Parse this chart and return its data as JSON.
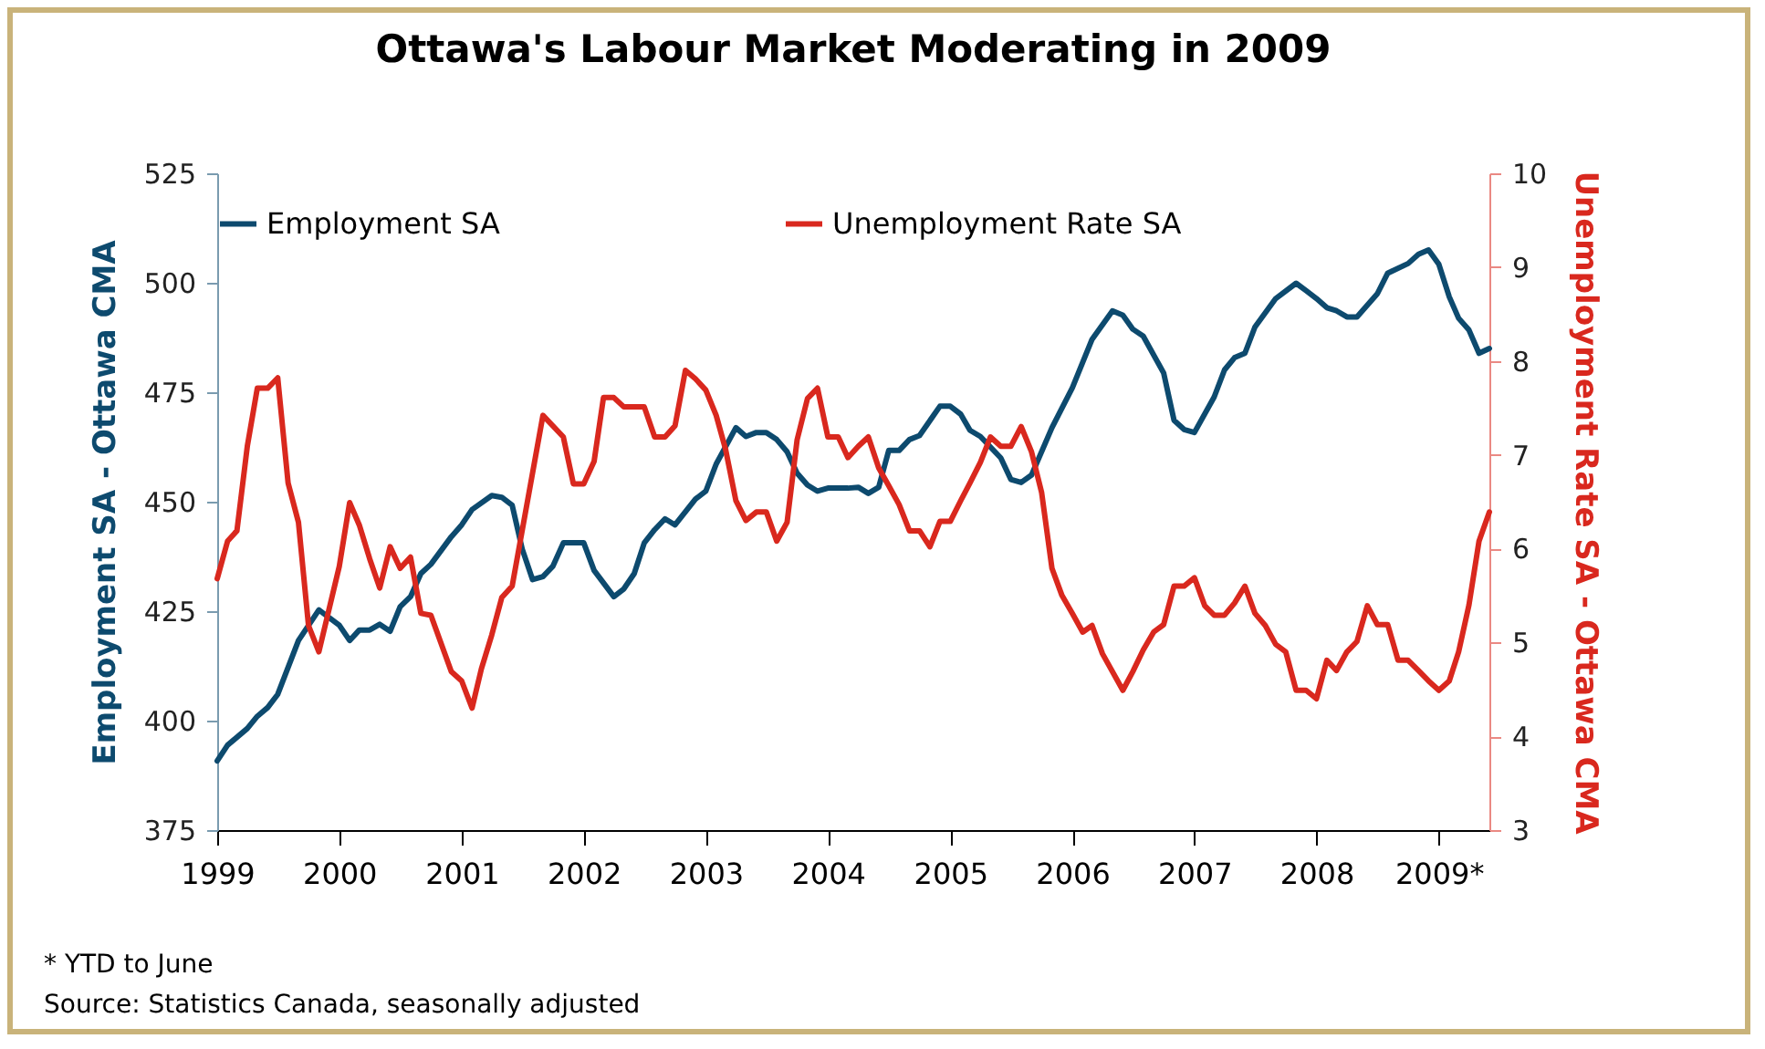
{
  "chart_data": {
    "type": "line",
    "title": "Ottawa's Labour Market Moderating in 2009",
    "ylabel": "Employment SA - Ottawa CMA",
    "y2label": "Unemployment Rate SA - Ottawa CMA",
    "xlim": [
      "1999-01",
      "2009-06"
    ],
    "xticks": [
      "1999",
      "2000",
      "2001",
      "2002",
      "2003",
      "2004",
      "2005",
      "2006",
      "2007",
      "2008",
      {
        "value": "2009",
        "label": "2009*"
      }
    ],
    "ylim": [
      375,
      525
    ],
    "yticks": [
      375,
      400,
      425,
      450,
      475,
      500,
      525
    ],
    "y2lim": [
      3,
      10
    ],
    "y2ticks": [
      3,
      4,
      5,
      6,
      7,
      8,
      9,
      10
    ],
    "legend": "top",
    "grid": false,
    "marker": "none",
    "line_style": "solid",
    "annotations": [
      "* YTD to June",
      "Source: Statistics Canada, seasonally adjusted"
    ],
    "series": [
      {
        "name": "Employment SA",
        "color": "#0d4a6e",
        "x": [
          "1999-01",
          "1999-02",
          "1999-04",
          "1999-05",
          "1999-06",
          "1999-07",
          "1999-09",
          "1999-11",
          "2000-01",
          "2000-02",
          "2000-03",
          "2000-04",
          "2000-05",
          "2000-06",
          "2000-07",
          "2000-08",
          "2000-09",
          "2000-10",
          "2000-12",
          "2001-01",
          "2001-02",
          "2001-04",
          "2001-05",
          "2001-06",
          "2001-07",
          "2001-08",
          "2001-09",
          "2001-10",
          "2001-11",
          "2002-01",
          "2002-02",
          "2002-04",
          "2002-05",
          "2002-06",
          "2002-07",
          "2002-08",
          "2002-09",
          "2002-10",
          "2002-12",
          "2003-01",
          "2003-02",
          "2003-04",
          "2003-05",
          "2003-06",
          "2003-07",
          "2003-08",
          "2003-09",
          "2003-10",
          "2003-11",
          "2003-12",
          "2004-01",
          "2004-03",
          "2004-04",
          "2004-05",
          "2004-06",
          "2004-07",
          "2004-08",
          "2004-09",
          "2004-10",
          "2004-12",
          "2005-01",
          "2005-02",
          "2005-03",
          "2005-04",
          "2005-06",
          "2005-07",
          "2005-08",
          "2005-09",
          "2005-11",
          "2006-01",
          "2006-03",
          "2006-05",
          "2006-06",
          "2006-07",
          "2006-08",
          "2006-10",
          "2006-11",
          "2006-12",
          "2007-01",
          "2007-03",
          "2007-04",
          "2007-05",
          "2007-06",
          "2007-07",
          "2007-09",
          "2007-11",
          "2007-12",
          "2008-01",
          "2008-02",
          "2008-03",
          "2008-04",
          "2008-05",
          "2008-07",
          "2008-08",
          "2008-10",
          "2008-11",
          "2008-12",
          "2009-01",
          "2009-02",
          "2009-03",
          "2009-04",
          "2009-05",
          "2009-06"
        ],
        "values": [
          390.8,
          394.4,
          398.2,
          401,
          403,
          406,
          418.3,
          425.3,
          421.8,
          418.3,
          420.7,
          420.7,
          422,
          420.4,
          426,
          428.3,
          433.6,
          435.7,
          442,
          444.7,
          448.2,
          451.4,
          451,
          449.2,
          439.2,
          432.2,
          432.9,
          435.3,
          440.6,
          440.6,
          434.3,
          428.3,
          430.1,
          433.6,
          440.6,
          443.6,
          446.1,
          444.7,
          450.6,
          452.4,
          458.6,
          466.9,
          464.9,
          465.8,
          465.8,
          464.2,
          461.4,
          456.5,
          453.8,
          452.4,
          453.1,
          453.1,
          453.3,
          451.9,
          453.3,
          461.7,
          461.7,
          464.2,
          465.1,
          471.8,
          471.8,
          470,
          466.3,
          464.9,
          460,
          455.1,
          454.4,
          456.1,
          466.9,
          476,
          487.1,
          493.6,
          492.6,
          489.4,
          487.8,
          479.4,
          468.6,
          466.5,
          465.8,
          473.9,
          480.1,
          482.9,
          483.9,
          489.9,
          496.4,
          499.9,
          498.2,
          496.4,
          494.3,
          493.6,
          492.2,
          492.2,
          497.5,
          502.2,
          504.4,
          506.5,
          507.5,
          504.2,
          496.8,
          491.9,
          489.2,
          483.9,
          485
        ]
      },
      {
        "name": "Unemployment Rate SA",
        "color": "#d9281e",
        "axis": "y2",
        "x": [
          "1999-01",
          "1999-02",
          "1999-03",
          "1999-04",
          "1999-05",
          "1999-06",
          "1999-07",
          "1999-08",
          "1999-09",
          "1999-10",
          "1999-11",
          "2000-01",
          "2000-02",
          "2000-03",
          "2000-04",
          "2000-05",
          "2000-06",
          "2000-07",
          "2000-08",
          "2000-09",
          "2000-10",
          "2000-12",
          "2001-01",
          "2001-02",
          "2001-03",
          "2001-04",
          "2001-05",
          "2001-06",
          "2001-09",
          "2001-11",
          "2001-12",
          "2002-01",
          "2002-02",
          "2002-03",
          "2002-04",
          "2002-05",
          "2002-07",
          "2002-08",
          "2002-09",
          "2002-10",
          "2002-11",
          "2002-12",
          "2003-01",
          "2003-02",
          "2003-03",
          "2003-04",
          "2003-05",
          "2003-06",
          "2003-07",
          "2003-08",
          "2003-09",
          "2003-10",
          "2003-11",
          "2003-12",
          "2004-01",
          "2004-02",
          "2004-03",
          "2004-04",
          "2004-05",
          "2004-06",
          "2004-07",
          "2004-08",
          "2004-09",
          "2004-10",
          "2004-11",
          "2004-12",
          "2005-01",
          "2005-02",
          "2005-03",
          "2005-04",
          "2005-05",
          "2005-06",
          "2005-07",
          "2005-08",
          "2005-09",
          "2005-10",
          "2005-11",
          "2005-12",
          "2006-01",
          "2006-02",
          "2006-03",
          "2006-04",
          "2006-06",
          "2006-07",
          "2006-08",
          "2006-09",
          "2006-10",
          "2006-11",
          "2006-12",
          "2007-01",
          "2007-02",
          "2007-03",
          "2007-04",
          "2007-05",
          "2007-06",
          "2007-07",
          "2007-08",
          "2007-09",
          "2007-10",
          "2007-11",
          "2007-12",
          "2008-01",
          "2008-02",
          "2008-03",
          "2008-04",
          "2008-05",
          "2008-06",
          "2008-07",
          "2008-08",
          "2008-09",
          "2008-10",
          "2008-11",
          "2008-12",
          "2009-01",
          "2009-02",
          "2009-03",
          "2009-04",
          "2009-05",
          "2009-06"
        ],
        "values": [
          5.68,
          6.08,
          6.19,
          7.09,
          7.71,
          7.71,
          7.82,
          6.7,
          6.28,
          5.18,
          4.9,
          5.81,
          6.49,
          6.25,
          5.89,
          5.58,
          6.02,
          5.79,
          5.91,
          5.31,
          5.29,
          4.69,
          4.59,
          4.3,
          4.72,
          5.08,
          5.48,
          5.6,
          7.42,
          7.19,
          6.69,
          6.69,
          6.93,
          7.61,
          7.61,
          7.51,
          7.51,
          7.19,
          7.19,
          7.31,
          7.9,
          7.81,
          7.69,
          7.42,
          7.06,
          6.51,
          6.3,
          6.39,
          6.39,
          6.08,
          6.28,
          7.16,
          7.6,
          7.71,
          7.19,
          7.19,
          6.97,
          7.09,
          7.19,
          6.86,
          6.67,
          6.47,
          6.19,
          6.19,
          6.02,
          6.29,
          6.29,
          6.51,
          6.7,
          6.92,
          7.19,
          7.09,
          7.09,
          7.3,
          7.03,
          6.6,
          5.79,
          5.5,
          5.31,
          5.11,
          5.18,
          4.88,
          4.49,
          4.69,
          4.92,
          5.11,
          5.19,
          5.6,
          5.6,
          5.69,
          5.39,
          5.29,
          5.29,
          5.42,
          5.6,
          5.31,
          5.18,
          4.98,
          4.9,
          4.49,
          4.49,
          4.4,
          4.81,
          4.7,
          4.9,
          5.01,
          5.39,
          5.19,
          5.19,
          4.81,
          4.81,
          4.7,
          4.59,
          4.49,
          4.59,
          4.9,
          5.4,
          6.08,
          6.39
        ]
      }
    ]
  }
}
